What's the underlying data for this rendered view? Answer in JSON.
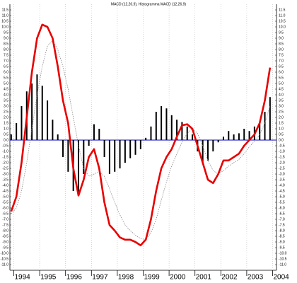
{
  "chart_data": {
    "type": "macd",
    "title": "MACD (12,26,9), Histogramma MACD (12,26,9)",
    "x": [
      1993.9,
      1994.1,
      1994.3,
      1994.5,
      1994.7,
      1994.9,
      1995.1,
      1995.3,
      1995.5,
      1995.7,
      1995.9,
      1996.1,
      1996.3,
      1996.5,
      1996.7,
      1996.9,
      1997.1,
      1997.3,
      1997.5,
      1997.7,
      1997.9,
      1998.1,
      1998.3,
      1998.5,
      1998.7,
      1998.9,
      1999.1,
      1999.3,
      1999.5,
      1999.7,
      1999.9,
      2000.1,
      2000.3,
      2000.5,
      2000.7,
      2000.9,
      2001.1,
      2001.3,
      2001.5,
      2001.7,
      2001.9,
      2002.1,
      2002.3,
      2002.5,
      2002.7,
      2002.9,
      2003.1,
      2003.3,
      2003.5,
      2003.7,
      2003.9
    ],
    "series": [
      {
        "type": "bar",
        "color": "#000000",
        "values": [
          0.5,
          1.5,
          3.0,
          4.3,
          5.0,
          5.8,
          4.8,
          3.5,
          1.8,
          0.5,
          -1.5,
          -2.8,
          -4.5,
          -4.8,
          -3.0,
          -0.5,
          1.4,
          1.0,
          -1.5,
          -3.0,
          -2.8,
          -2.5,
          -2.0,
          -1.6,
          -1.3,
          -0.8,
          0.2,
          1.2,
          2.5,
          3.0,
          2.8,
          2.2,
          1.8,
          1.6,
          1.2,
          0.5,
          -1.0,
          -2.0,
          -1.8,
          -1.0,
          -0.2,
          0.3,
          0.8,
          0.5,
          0.6,
          1.0,
          0.8,
          1.2,
          1.5,
          2.5,
          3.8
        ]
      },
      {
        "type": "line",
        "color": "#888888",
        "dashed": true,
        "values": [
          -6.5,
          -6.0,
          -4.5,
          -2.0,
          1.0,
          4.0,
          6.5,
          8.3,
          8.8,
          8.0,
          6.5,
          4.5,
          2.0,
          -0.5,
          -2.5,
          -3.2,
          -3.0,
          -2.8,
          -3.2,
          -4.3,
          -5.5,
          -6.6,
          -7.5,
          -8.0,
          -8.4,
          -8.7,
          -8.8,
          -8.2,
          -7.0,
          -5.3,
          -3.7,
          -2.3,
          -1.2,
          -0.2,
          0.6,
          1.0,
          0.6,
          -0.5,
          -1.8,
          -2.7,
          -3.0,
          -2.7,
          -2.3,
          -2.0,
          -1.7,
          -1.2,
          -0.6,
          -0.1,
          0.5,
          1.5,
          3.0
        ]
      },
      {
        "type": "line",
        "color": "#e80000",
        "dashed": false,
        "values": [
          -6.3,
          -5.0,
          -2.0,
          2.0,
          6.0,
          9.0,
          10.2,
          10.0,
          9.0,
          6.5,
          3.5,
          1.5,
          -2.5,
          -4.9,
          -3.5,
          -1.5,
          -0.8,
          -2.5,
          -5.5,
          -7.5,
          -8.0,
          -8.6,
          -8.8,
          -8.8,
          -9.0,
          -9.3,
          -8.8,
          -7.0,
          -4.5,
          -2.5,
          -1.5,
          -0.8,
          0.3,
          1.3,
          1.4,
          1.0,
          -0.5,
          -2.0,
          -3.5,
          -3.8,
          -3.0,
          -1.8,
          -1.8,
          -1.5,
          -1.2,
          -0.5,
          0.0,
          0.5,
          1.5,
          3.5,
          6.4
        ]
      }
    ],
    "zero_line_color": "#0000c0",
    "xlim": [
      1993.85,
      2004.15
    ],
    "xticks": [
      1994,
      1995,
      1996,
      1997,
      1998,
      1999,
      2000,
      2001,
      2002,
      2003,
      2004
    ],
    "ylim": [
      -11.25,
      11.75
    ],
    "yticks": [
      11.5,
      {
        "value": 11,
        "label": "11.0"
      },
      10.5,
      {
        "value": 10,
        "label": "10.0"
      },
      9.5,
      {
        "value": 9,
        "label": "9.0"
      },
      8.5,
      {
        "value": 8,
        "label": "8.0"
      },
      7.5,
      {
        "value": 7,
        "label": "7.0"
      },
      6.5,
      {
        "value": 6,
        "label": "6.0"
      },
      5.5,
      {
        "value": 5,
        "label": "5.0"
      },
      4.5,
      {
        "value": 4,
        "label": "4.0"
      },
      3.5,
      {
        "value": 3,
        "label": "3.0"
      },
      2.5,
      {
        "value": 2,
        "label": "2.0"
      },
      1.5,
      {
        "value": 1,
        "label": "1.0"
      },
      0.5,
      {
        "value": 0,
        "label": "0.0"
      },
      -0.5,
      {
        "value": -1,
        "label": "-1.0"
      },
      -1.5,
      {
        "value": -2,
        "label": "-2.0"
      },
      -2.5,
      {
        "value": -3,
        "label": "-3.0"
      },
      -3.5,
      {
        "value": -4,
        "label": "-4.0"
      },
      -4.5,
      {
        "value": -5,
        "label": "-5.0"
      },
      -5.5,
      {
        "value": -6,
        "label": "-6.0"
      },
      -6.5,
      {
        "value": -7,
        "label": "-7.0"
      },
      -7.5,
      {
        "value": -8,
        "label": "-8.0"
      },
      -8.5,
      {
        "value": -9,
        "label": "-9.0"
      },
      -9.5,
      {
        "value": -10,
        "label": "-10.0"
      },
      -10.5,
      {
        "value": -11,
        "label": "-11.0"
      }
    ],
    "grid": true
  }
}
